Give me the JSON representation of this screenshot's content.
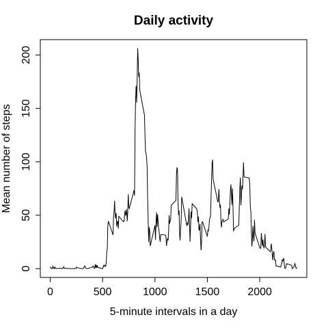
{
  "chart_data": {
    "type": "line",
    "title": "Daily activity",
    "xlabel": "5-minute intervals in a day",
    "ylabel": "Mean number of steps",
    "color": "#000000",
    "xlim": [
      -94.2,
      2449.2
    ],
    "ylim": [
      -8.25,
      214.4
    ],
    "xticks": [
      0,
      500,
      1000,
      1500,
      2000
    ],
    "yticks": [
      0,
      50,
      100,
      150,
      200
    ],
    "x": [
      0,
      5,
      10,
      15,
      20,
      25,
      30,
      35,
      40,
      45,
      50,
      55,
      100,
      110,
      120,
      125,
      130,
      135,
      140,
      150,
      200,
      230,
      245,
      250,
      255,
      300,
      315,
      330,
      335,
      340,
      350,
      400,
      410,
      420,
      425,
      430,
      435,
      440,
      445,
      450,
      455,
      500,
      510,
      515,
      520,
      525,
      530,
      535,
      540,
      545,
      550,
      555,
      600,
      605,
      610,
      615,
      620,
      625,
      630,
      635,
      640,
      645,
      650,
      655,
      700,
      705,
      710,
      715,
      720,
      725,
      730,
      735,
      740,
      745,
      750,
      755,
      800,
      805,
      810,
      815,
      820,
      825,
      830,
      835,
      840,
      845,
      850,
      855,
      900,
      905,
      910,
      915,
      920,
      925,
      930,
      935,
      940,
      945,
      950,
      955,
      1000,
      1005,
      1010,
      1015,
      1020,
      1025,
      1030,
      1035,
      1040,
      1045,
      1050,
      1055,
      1100,
      1105,
      1110,
      1115,
      1120,
      1125,
      1130,
      1135,
      1140,
      1145,
      1150,
      1155,
      1200,
      1205,
      1210,
      1215,
      1220,
      1225,
      1230,
      1235,
      1240,
      1245,
      1250,
      1255,
      1300,
      1305,
      1310,
      1315,
      1320,
      1325,
      1330,
      1335,
      1340,
      1345,
      1350,
      1355,
      1400,
      1405,
      1410,
      1415,
      1420,
      1425,
      1430,
      1435,
      1440,
      1445,
      1450,
      1455,
      1500,
      1505,
      1510,
      1515,
      1520,
      1525,
      1530,
      1535,
      1540,
      1545,
      1550,
      1555,
      1600,
      1605,
      1610,
      1615,
      1620,
      1625,
      1630,
      1635,
      1640,
      1645,
      1650,
      1655,
      1700,
      1705,
      1710,
      1715,
      1720,
      1725,
      1730,
      1735,
      1740,
      1745,
      1750,
      1755,
      1800,
      1805,
      1810,
      1815,
      1820,
      1825,
      1830,
      1835,
      1840,
      1845,
      1850,
      1855,
      1900,
      1905,
      1910,
      1915,
      1920,
      1925,
      1930,
      1935,
      1940,
      1945,
      1950,
      1955,
      2000,
      2005,
      2010,
      2015,
      2020,
      2025,
      2030,
      2035,
      2040,
      2045,
      2050,
      2055,
      2100,
      2105,
      2110,
      2115,
      2120,
      2125,
      2130,
      2135,
      2140,
      2145,
      2150,
      2155,
      2200,
      2205,
      2210,
      2215,
      2220,
      2225,
      2230,
      2235,
      2240,
      2245,
      2250,
      2255,
      2300,
      2305,
      2310,
      2315,
      2320,
      2325,
      2330,
      2335,
      2340,
      2345,
      2350,
      2355
    ],
    "values": [
      1.7,
      0.3,
      0.1,
      0.2,
      0.1,
      2.1,
      0.5,
      0.9,
      0,
      1.5,
      0.3,
      0.1,
      0.3,
      0.2,
      0,
      1.1,
      1.8,
      0.2,
      0.2,
      0.3,
      0,
      0,
      0,
      1.5,
      0.9,
      0,
      0,
      2.6,
      0.7,
      0.6,
      0,
      1.2,
      2.6,
      0.3,
      0.4,
      4.1,
      0.7,
      3.5,
      0.8,
      3.1,
      1.1,
      0,
      3.0,
      2.2,
      3.3,
      3.0,
      2.1,
      6.1,
      16.0,
      18.3,
      39.5,
      44.5,
      31.5,
      49.3,
      53.8,
      63.5,
      50.0,
      47.1,
      52.2,
      39.3,
      44.0,
      44.2,
      37.4,
      49.0,
      43.8,
      44.4,
      50.5,
      54.5,
      49.9,
      51.0,
      55.7,
      44.3,
      52.3,
      69.5,
      57.8,
      56.2,
      73.4,
      68.2,
      129.4,
      157.5,
      171.2,
      155.4,
      177.3,
      206.2,
      195.9,
      179.6,
      183.4,
      167.0,
      143.5,
      124.0,
      109.1,
      108.1,
      103.7,
      96.0,
      66.2,
      45.2,
      24.8,
      38.8,
      35.0,
      21.1,
      40.6,
      27.0,
      42.4,
      52.7,
      38.9,
      50.8,
      44.3,
      37.4,
      34.7,
      28.3,
      25.1,
      31.9,
      31.4,
      29.7,
      21.3,
      25.5,
      28.4,
      26.5,
      33.4,
      50.0,
      42.0,
      44.6,
      46.0,
      59.2,
      63.9,
      87.7,
      94.8,
      92.8,
      63.4,
      50.2,
      54.5,
      32.4,
      26.5,
      37.7,
      45.1,
      67.3,
      42.3,
      39.9,
      43.3,
      41.0,
      46.2,
      56.4,
      42.8,
      25.1,
      40.0,
      53.5,
      47.3,
      60.8,
      55.8,
      52.0,
      43.6,
      48.7,
      35.5,
      37.5,
      41.8,
      27.5,
      17.1,
      26.1,
      43.6,
      43.8,
      30.0,
      36.1,
      35.5,
      38.8,
      46.0,
      47.8,
      48.1,
      65.3,
      82.9,
      98.7,
      102.1,
      84.0,
      62.1,
      64.1,
      74.5,
      63.2,
      56.9,
      59.8,
      43.9,
      38.6,
      44.7,
      45.5,
      46.2,
      43.7,
      46.6,
      56.3,
      50.7,
      61.2,
      72.7,
      78.9,
      68.9,
      59.7,
      75.1,
      56.5,
      34.8,
      37.5,
      40.7,
      58.0,
      74.7,
      85.3,
      59.3,
      67.8,
      77.7,
      74.2,
      85.3,
      99.5,
      86.6,
      85.6,
      84.9,
      77.8,
      58.0,
      53.4,
      36.3,
      20.7,
      27.4,
      40.0,
      30.2,
      25.5,
      45.7,
      33.5,
      19.6,
      19.0,
      19.3,
      33.3,
      26.8,
      21.2,
      27.3,
      21.3,
      19.5,
      21.3,
      32.3,
      20.2,
      15.9,
      17.2,
      23.5,
      19.2,
      12.5,
      8.0,
      14.7,
      16.3,
      8.7,
      7.8,
      8.1,
      2.6,
      1.5,
      3.7,
      4.8,
      8.5,
      7.1,
      8.7,
      9.8,
      2.2,
      0.3,
      0.1,
      1.6,
      4.6,
      3.3,
      2.8,
      0,
      0.8,
      1.0,
      1.6,
      2.6,
      4.7,
      3.3,
      0.6,
      0.2,
      1.1
    ]
  }
}
